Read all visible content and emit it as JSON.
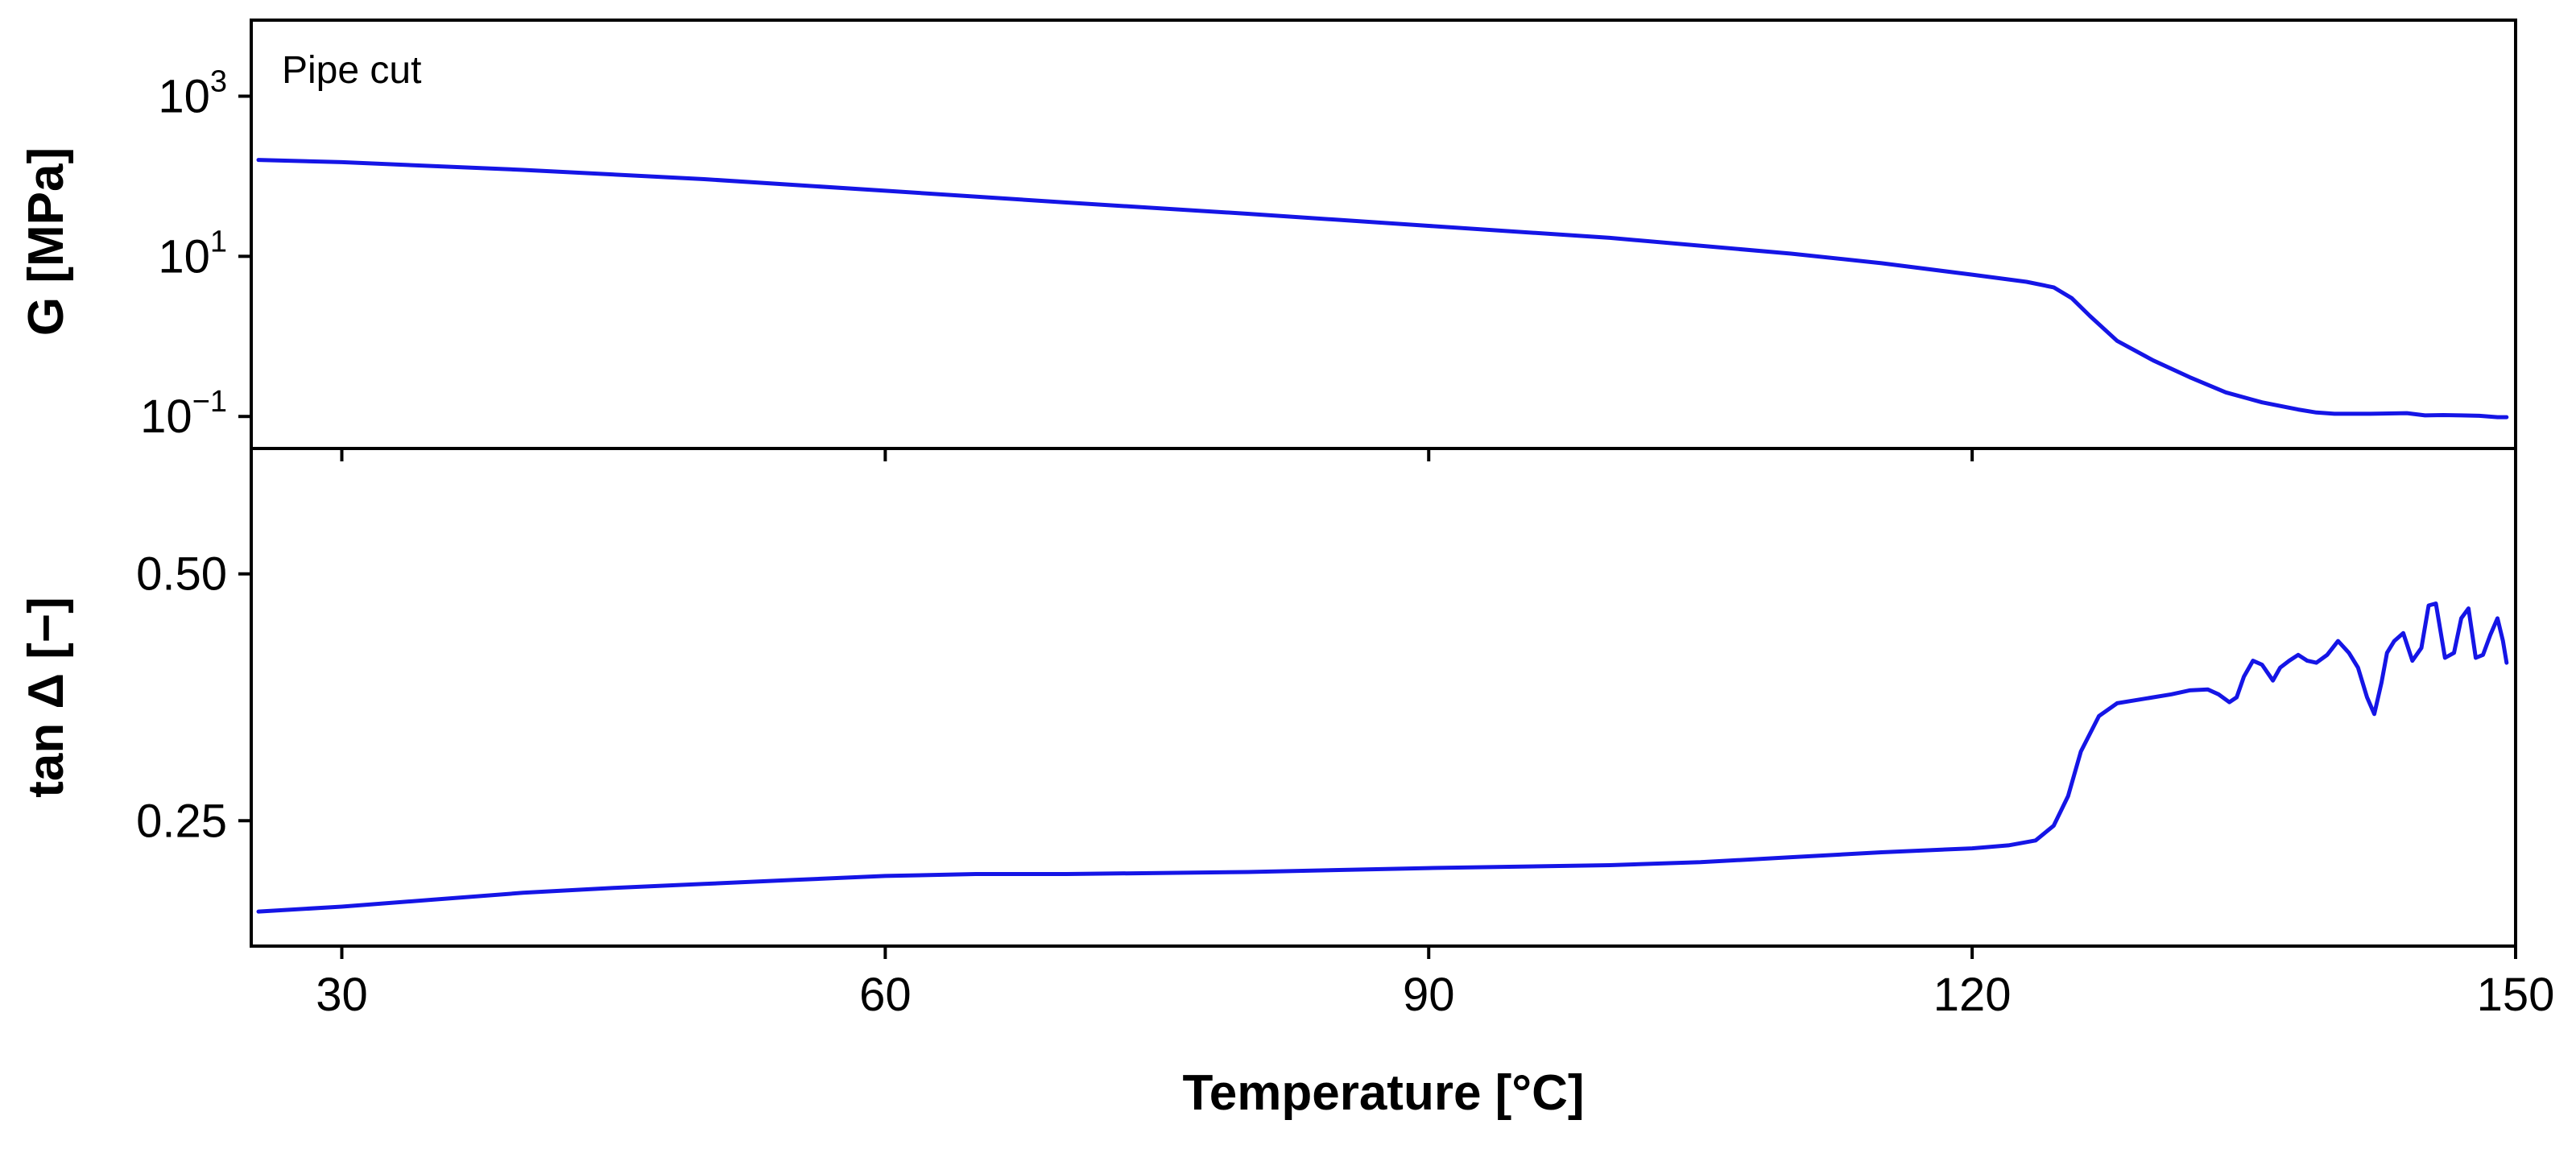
{
  "chart_data": {
    "type": "line",
    "colors": {
      "series": "#1515e6",
      "axes": "#000000"
    },
    "xlabel": "Temperature [°C]",
    "xlim": [
      25,
      150
    ],
    "xticks": [
      30,
      60,
      90,
      120,
      150
    ],
    "xtick_labels": [
      "30",
      "60",
      "90",
      "120",
      "150"
    ],
    "panels": [
      {
        "id": "top",
        "ylabel": "G [MPa]",
        "yscale": "log",
        "ylim_log10": [
          -1.4,
          3.95
        ],
        "yticks_log10": [
          -1,
          1,
          3
        ],
        "ytick_labels": [
          {
            "base": "10",
            "exp": "−1"
          },
          {
            "base": "10",
            "exp": "1"
          },
          {
            "base": "10",
            "exp": "3"
          }
        ],
        "annotation": "Pipe cut",
        "series": [
          {
            "name": "G",
            "x": [
              25.4,
              30,
              40,
              50,
              60,
              70,
              80,
              90,
              100,
              110,
              115,
              120,
              123,
              124.5,
              125.5,
              126.5,
              128,
              130,
              132,
              134,
              136,
              138,
              139,
              140,
              141,
              142,
              143,
              144,
              145,
              146,
              147,
              148,
              149,
              149.5
            ],
            "y": [
              160,
              150,
              120,
              92,
              66,
              47,
              34,
              24,
              17,
              10.8,
              8.2,
              5.9,
              4.8,
              4.1,
              3.0,
              1.8,
              0.88,
              0.5,
              0.31,
              0.2,
              0.15,
              0.122,
              0.112,
              0.108,
              0.108,
              0.108,
              0.109,
              0.11,
              0.103,
              0.104,
              0.103,
              0.102,
              0.098,
              0.098
            ]
          }
        ]
      },
      {
        "id": "bottom",
        "ylabel": "tan Δ [−]",
        "yscale": "linear",
        "ylim": [
          0.123,
          0.627
        ],
        "yticks": [
          0.25,
          0.5
        ],
        "ytick_labels": [
          "0.25",
          "0.50"
        ],
        "series": [
          {
            "name": "tan Δ",
            "x": [
              25.4,
              30,
              35,
              40,
              45,
              50,
              55,
              60,
              65,
              70,
              80,
              90,
              100,
              105,
              110,
              115,
              120,
              122,
              123.5,
              124.5,
              125.3,
              126,
              127,
              128,
              129,
              130,
              131,
              132,
              133,
              133.6,
              134.2,
              134.6,
              135,
              135.5,
              136,
              136.6,
              137,
              137.5,
              138,
              138.5,
              139,
              139.6,
              140.2,
              140.8,
              141.3,
              141.8,
              142.2,
              142.6,
              142.9,
              143.3,
              143.8,
              144.3,
              144.8,
              145.2,
              145.6,
              146.1,
              146.6,
              147,
              147.4,
              147.8,
              148.2,
              148.6,
              149,
              149.3,
              149.5
            ],
            "y": [
              0.158,
              0.163,
              0.17,
              0.177,
              0.182,
              0.186,
              0.19,
              0.194,
              0.196,
              0.196,
              0.198,
              0.202,
              0.205,
              0.208,
              0.213,
              0.218,
              0.222,
              0.225,
              0.23,
              0.245,
              0.275,
              0.32,
              0.356,
              0.369,
              0.372,
              0.375,
              0.378,
              0.382,
              0.383,
              0.378,
              0.37,
              0.375,
              0.396,
              0.412,
              0.408,
              0.392,
              0.405,
              0.412,
              0.418,
              0.412,
              0.41,
              0.418,
              0.432,
              0.42,
              0.405,
              0.375,
              0.358,
              0.39,
              0.42,
              0.432,
              0.44,
              0.412,
              0.425,
              0.468,
              0.47,
              0.415,
              0.42,
              0.455,
              0.465,
              0.415,
              0.418,
              0.438,
              0.455,
              0.432,
              0.41
            ]
          }
        ]
      }
    ]
  }
}
